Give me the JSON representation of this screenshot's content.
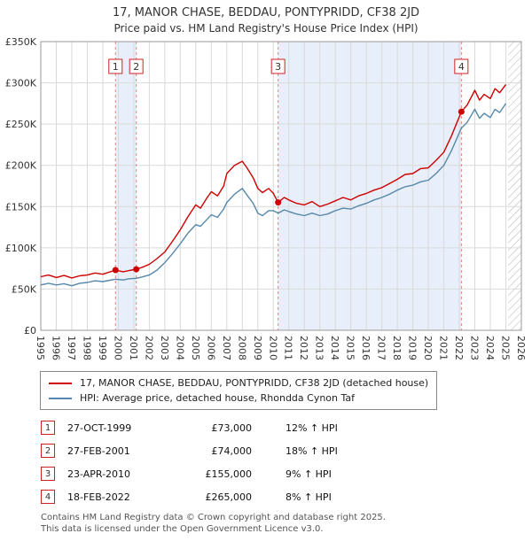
{
  "header": {
    "title": "17, MANOR CHASE, BEDDAU, PONTYPRIDD, CF38 2JD",
    "subtitle": "Price paid vs. HM Land Registry's House Price Index (HPI)"
  },
  "chart_data": {
    "type": "line",
    "x_range": [
      1995,
      2026
    ],
    "y_range": [
      0,
      350000
    ],
    "x_ticks": [
      "1995",
      "1996",
      "1997",
      "1998",
      "1999",
      "2000",
      "2001",
      "2002",
      "2003",
      "2004",
      "2005",
      "2006",
      "2007",
      "2008",
      "2009",
      "2010",
      "2011",
      "2012",
      "2013",
      "2014",
      "2015",
      "2016",
      "2017",
      "2018",
      "2019",
      "2020",
      "2021",
      "2022",
      "2023",
      "2024",
      "2025",
      "2026"
    ],
    "y_ticks": [
      {
        "value": 0,
        "label": "£0"
      },
      {
        "value": 50000,
        "label": "£50K"
      },
      {
        "value": 100000,
        "label": "£100K"
      },
      {
        "value": 150000,
        "label": "£150K"
      },
      {
        "value": 200000,
        "label": "£200K"
      },
      {
        "value": 250000,
        "label": "£250K"
      },
      {
        "value": 300000,
        "label": "£300K"
      },
      {
        "value": 350000,
        "label": "£350K"
      }
    ],
    "grid": true,
    "legend_position": "bottom",
    "band_color": "#e9effa",
    "marker_line_color": "#e08080",
    "marker_box_border": "#cc2222",
    "hatch_from": 2025.15,
    "bands": [
      {
        "from": 1999.82,
        "to": 2001.16
      },
      {
        "from": 2010.31,
        "to": 2022.13
      }
    ],
    "markers": [
      {
        "n": "1",
        "x": 1999.82,
        "y": 73000
      },
      {
        "n": "2",
        "x": 2001.16,
        "y": 74000
      },
      {
        "n": "3",
        "x": 2010.31,
        "y": 155000
      },
      {
        "n": "4",
        "x": 2022.13,
        "y": 265000
      }
    ],
    "series": [
      {
        "name": "17, MANOR CHASE, BEDDAU, PONTYPRIDD, CF38 2JD (detached house)",
        "color": "#cc0000",
        "points": [
          [
            1995,
            65000
          ],
          [
            1995.5,
            67000
          ],
          [
            1996,
            64000
          ],
          [
            1996.5,
            66500
          ],
          [
            1997,
            63500
          ],
          [
            1997.5,
            66000
          ],
          [
            1998,
            67000
          ],
          [
            1998.5,
            69500
          ],
          [
            1999,
            68000
          ],
          [
            1999.82,
            73000
          ],
          [
            2000.3,
            71000
          ],
          [
            2000.7,
            72500
          ],
          [
            2001.16,
            74000
          ],
          [
            2001.5,
            76000
          ],
          [
            2002,
            80000
          ],
          [
            2002.5,
            87000
          ],
          [
            2003,
            95000
          ],
          [
            2003.5,
            108000
          ],
          [
            2004,
            122000
          ],
          [
            2004.5,
            138000
          ],
          [
            2005,
            152000
          ],
          [
            2005.3,
            148000
          ],
          [
            2005.7,
            160000
          ],
          [
            2006,
            168000
          ],
          [
            2006.4,
            163000
          ],
          [
            2006.8,
            175000
          ],
          [
            2007,
            190000
          ],
          [
            2007.5,
            200000
          ],
          [
            2008,
            205000
          ],
          [
            2008.3,
            197000
          ],
          [
            2008.7,
            185000
          ],
          [
            2009,
            172000
          ],
          [
            2009.3,
            167000
          ],
          [
            2009.7,
            172000
          ],
          [
            2010,
            166000
          ],
          [
            2010.31,
            155000
          ],
          [
            2010.7,
            161000
          ],
          [
            2011,
            158000
          ],
          [
            2011.5,
            154000
          ],
          [
            2012,
            152000
          ],
          [
            2012.5,
            156000
          ],
          [
            2013,
            150000
          ],
          [
            2013.5,
            153000
          ],
          [
            2014,
            157000
          ],
          [
            2014.5,
            161000
          ],
          [
            2015,
            158000
          ],
          [
            2015.5,
            163000
          ],
          [
            2016,
            166000
          ],
          [
            2016.5,
            170000
          ],
          [
            2017,
            173000
          ],
          [
            2017.5,
            178000
          ],
          [
            2018,
            183000
          ],
          [
            2018.5,
            189000
          ],
          [
            2019,
            190000
          ],
          [
            2019.5,
            196000
          ],
          [
            2020,
            197000
          ],
          [
            2020.5,
            206000
          ],
          [
            2021,
            216000
          ],
          [
            2021.5,
            236000
          ],
          [
            2022.13,
            265000
          ],
          [
            2022.5,
            273000
          ],
          [
            2023,
            291000
          ],
          [
            2023.3,
            279000
          ],
          [
            2023.6,
            286000
          ],
          [
            2024,
            281000
          ],
          [
            2024.3,
            293000
          ],
          [
            2024.6,
            288000
          ],
          [
            2025,
            298000
          ]
        ]
      },
      {
        "name": "HPI: Average price, detached house, Rhondda Cynon Taf",
        "color": "#5588aa",
        "points": [
          [
            1995,
            55000
          ],
          [
            1995.5,
            57000
          ],
          [
            1996,
            55000
          ],
          [
            1996.5,
            56500
          ],
          [
            1997,
            54000
          ],
          [
            1997.5,
            57000
          ],
          [
            1998,
            58000
          ],
          [
            1998.5,
            60000
          ],
          [
            1999,
            59000
          ],
          [
            1999.82,
            62000
          ],
          [
            2000.3,
            61000
          ],
          [
            2000.7,
            62500
          ],
          [
            2001.16,
            63000
          ],
          [
            2001.5,
            64500
          ],
          [
            2002,
            67000
          ],
          [
            2002.5,
            73000
          ],
          [
            2003,
            82000
          ],
          [
            2003.5,
            93000
          ],
          [
            2004,
            105000
          ],
          [
            2004.5,
            118000
          ],
          [
            2005,
            128000
          ],
          [
            2005.3,
            126000
          ],
          [
            2005.7,
            134000
          ],
          [
            2006,
            140000
          ],
          [
            2006.4,
            137000
          ],
          [
            2006.8,
            147000
          ],
          [
            2007,
            155000
          ],
          [
            2007.5,
            165000
          ],
          [
            2008,
            172000
          ],
          [
            2008.3,
            164000
          ],
          [
            2008.7,
            154000
          ],
          [
            2009,
            142000
          ],
          [
            2009.3,
            139000
          ],
          [
            2009.7,
            145000
          ],
          [
            2010,
            145000
          ],
          [
            2010.31,
            142000
          ],
          [
            2010.7,
            146000
          ],
          [
            2011,
            144000
          ],
          [
            2011.5,
            141000
          ],
          [
            2012,
            139000
          ],
          [
            2012.5,
            142000
          ],
          [
            2013,
            139000
          ],
          [
            2013.5,
            141000
          ],
          [
            2014,
            145000
          ],
          [
            2014.5,
            148000
          ],
          [
            2015,
            147000
          ],
          [
            2015.5,
            151000
          ],
          [
            2016,
            154000
          ],
          [
            2016.5,
            158000
          ],
          [
            2017,
            161000
          ],
          [
            2017.5,
            165000
          ],
          [
            2018,
            170000
          ],
          [
            2018.5,
            174000
          ],
          [
            2019,
            176000
          ],
          [
            2019.5,
            180000
          ],
          [
            2020,
            182000
          ],
          [
            2020.5,
            190000
          ],
          [
            2021,
            200000
          ],
          [
            2021.5,
            218000
          ],
          [
            2022.13,
            245000
          ],
          [
            2022.5,
            252000
          ],
          [
            2023,
            268000
          ],
          [
            2023.3,
            257000
          ],
          [
            2023.6,
            263000
          ],
          [
            2024,
            258000
          ],
          [
            2024.3,
            268000
          ],
          [
            2024.6,
            264000
          ],
          [
            2025,
            275000
          ]
        ]
      }
    ]
  },
  "transactions": [
    {
      "n": "1",
      "date": "27-OCT-1999",
      "price": "£73,000",
      "hpi": "12% ↑ HPI"
    },
    {
      "n": "2",
      "date": "27-FEB-2001",
      "price": "£74,000",
      "hpi": "18% ↑ HPI"
    },
    {
      "n": "3",
      "date": "23-APR-2010",
      "price": "£155,000",
      "hpi": "9% ↑ HPI"
    },
    {
      "n": "4",
      "date": "18-FEB-2022",
      "price": "£265,000",
      "hpi": "8% ↑ HPI"
    }
  ],
  "footer": {
    "line1": "Contains HM Land Registry data © Crown copyright and database right 2025.",
    "line2": "This data is licensed under the Open Government Licence v3.0."
  }
}
